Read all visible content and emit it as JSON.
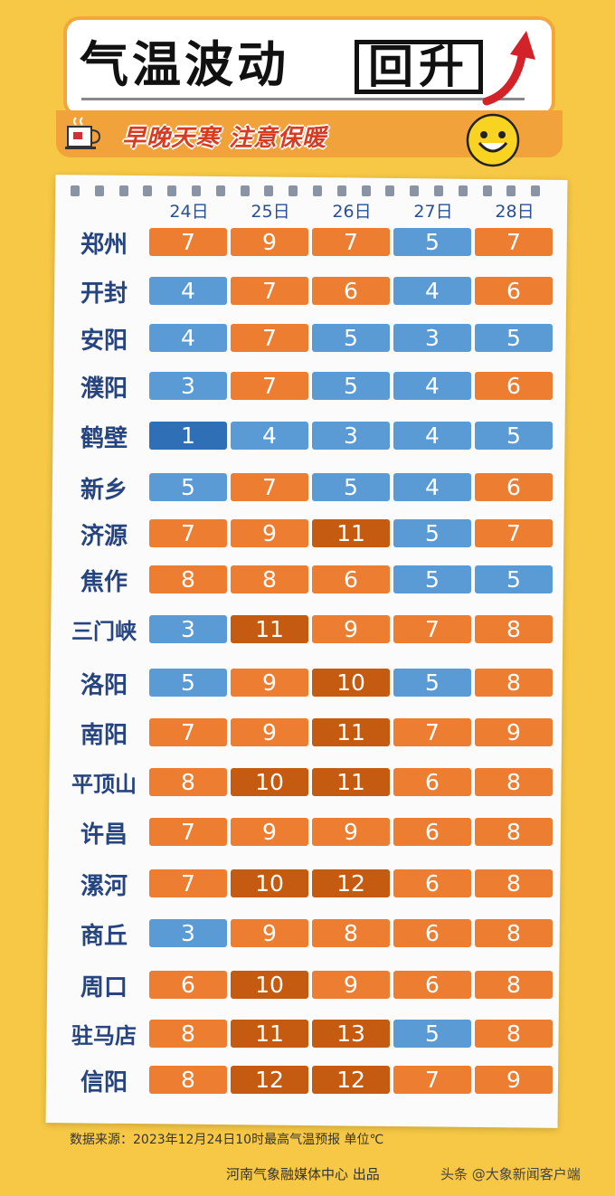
{
  "header": {
    "title_main": "气温波动",
    "title_box": "回升",
    "subtitle": "早晚天寒 注意保暖"
  },
  "colors": {
    "blue": "#5b9bd5",
    "deep_blue": "#2e6fb6",
    "orange": "#ec7d31",
    "dark_orange": "#c55a11"
  },
  "dates": [
    "24日",
    "25日",
    "26日",
    "27日",
    "28日"
  ],
  "cities": [
    {
      "name": "郑州",
      "temps": [
        {
          "v": "7",
          "c": "orange"
        },
        {
          "v": "9",
          "c": "orange"
        },
        {
          "v": "7",
          "c": "orange"
        },
        {
          "v": "5",
          "c": "blue"
        },
        {
          "v": "7",
          "c": "orange"
        }
      ]
    },
    {
      "name": "开封",
      "temps": [
        {
          "v": "4",
          "c": "blue"
        },
        {
          "v": "7",
          "c": "orange"
        },
        {
          "v": "6",
          "c": "orange"
        },
        {
          "v": "4",
          "c": "blue"
        },
        {
          "v": "6",
          "c": "orange"
        }
      ]
    },
    {
      "name": "安阳",
      "temps": [
        {
          "v": "4",
          "c": "blue"
        },
        {
          "v": "7",
          "c": "orange"
        },
        {
          "v": "5",
          "c": "blue"
        },
        {
          "v": "3",
          "c": "blue"
        },
        {
          "v": "5",
          "c": "blue"
        }
      ]
    },
    {
      "name": "濮阳",
      "temps": [
        {
          "v": "3",
          "c": "blue"
        },
        {
          "v": "7",
          "c": "orange"
        },
        {
          "v": "5",
          "c": "blue"
        },
        {
          "v": "4",
          "c": "blue"
        },
        {
          "v": "6",
          "c": "orange"
        }
      ]
    },
    {
      "name": "鹤壁",
      "temps": [
        {
          "v": "1",
          "c": "deep_blue"
        },
        {
          "v": "4",
          "c": "blue"
        },
        {
          "v": "3",
          "c": "blue"
        },
        {
          "v": "4",
          "c": "blue"
        },
        {
          "v": "5",
          "c": "blue"
        }
      ]
    },
    {
      "name": "新乡",
      "temps": [
        {
          "v": "5",
          "c": "blue"
        },
        {
          "v": "7",
          "c": "orange"
        },
        {
          "v": "5",
          "c": "blue"
        },
        {
          "v": "4",
          "c": "blue"
        },
        {
          "v": "6",
          "c": "orange"
        }
      ]
    },
    {
      "name": "济源",
      "temps": [
        {
          "v": "7",
          "c": "orange"
        },
        {
          "v": "9",
          "c": "orange"
        },
        {
          "v": "11",
          "c": "dark_orange"
        },
        {
          "v": "5",
          "c": "blue"
        },
        {
          "v": "7",
          "c": "orange"
        }
      ]
    },
    {
      "name": "焦作",
      "temps": [
        {
          "v": "8",
          "c": "orange"
        },
        {
          "v": "8",
          "c": "orange"
        },
        {
          "v": "6",
          "c": "orange"
        },
        {
          "v": "5",
          "c": "blue"
        },
        {
          "v": "5",
          "c": "blue"
        }
      ]
    },
    {
      "name": "三门峡",
      "temps": [
        {
          "v": "3",
          "c": "blue"
        },
        {
          "v": "11",
          "c": "dark_orange"
        },
        {
          "v": "9",
          "c": "orange"
        },
        {
          "v": "7",
          "c": "orange"
        },
        {
          "v": "8",
          "c": "orange"
        }
      ]
    },
    {
      "name": "洛阳",
      "temps": [
        {
          "v": "5",
          "c": "blue"
        },
        {
          "v": "9",
          "c": "orange"
        },
        {
          "v": "10",
          "c": "dark_orange"
        },
        {
          "v": "5",
          "c": "blue"
        },
        {
          "v": "8",
          "c": "orange"
        }
      ]
    },
    {
      "name": "南阳",
      "temps": [
        {
          "v": "7",
          "c": "orange"
        },
        {
          "v": "9",
          "c": "orange"
        },
        {
          "v": "11",
          "c": "dark_orange"
        },
        {
          "v": "7",
          "c": "orange"
        },
        {
          "v": "9",
          "c": "orange"
        }
      ]
    },
    {
      "name": "平顶山",
      "temps": [
        {
          "v": "8",
          "c": "orange"
        },
        {
          "v": "10",
          "c": "dark_orange"
        },
        {
          "v": "11",
          "c": "dark_orange"
        },
        {
          "v": "6",
          "c": "orange"
        },
        {
          "v": "8",
          "c": "orange"
        }
      ]
    },
    {
      "name": "许昌",
      "temps": [
        {
          "v": "7",
          "c": "orange"
        },
        {
          "v": "9",
          "c": "orange"
        },
        {
          "v": "9",
          "c": "orange"
        },
        {
          "v": "6",
          "c": "orange"
        },
        {
          "v": "8",
          "c": "orange"
        }
      ]
    },
    {
      "name": "漯河",
      "temps": [
        {
          "v": "7",
          "c": "orange"
        },
        {
          "v": "10",
          "c": "dark_orange"
        },
        {
          "v": "12",
          "c": "dark_orange"
        },
        {
          "v": "6",
          "c": "orange"
        },
        {
          "v": "8",
          "c": "orange"
        }
      ]
    },
    {
      "name": "商丘",
      "temps": [
        {
          "v": "3",
          "c": "blue"
        },
        {
          "v": "9",
          "c": "orange"
        },
        {
          "v": "8",
          "c": "orange"
        },
        {
          "v": "6",
          "c": "orange"
        },
        {
          "v": "8",
          "c": "orange"
        }
      ]
    },
    {
      "name": "周口",
      "temps": [
        {
          "v": "6",
          "c": "orange"
        },
        {
          "v": "10",
          "c": "dark_orange"
        },
        {
          "v": "9",
          "c": "orange"
        },
        {
          "v": "6",
          "c": "orange"
        },
        {
          "v": "8",
          "c": "orange"
        }
      ]
    },
    {
      "name": "驻马店",
      "temps": [
        {
          "v": "8",
          "c": "orange"
        },
        {
          "v": "11",
          "c": "dark_orange"
        },
        {
          "v": "13",
          "c": "dark_orange"
        },
        {
          "v": "5",
          "c": "blue"
        },
        {
          "v": "8",
          "c": "orange"
        }
      ]
    },
    {
      "name": "信阳",
      "temps": [
        {
          "v": "8",
          "c": "orange"
        },
        {
          "v": "12",
          "c": "dark_orange"
        },
        {
          "v": "12",
          "c": "dark_orange"
        },
        {
          "v": "7",
          "c": "orange"
        },
        {
          "v": "9",
          "c": "orange"
        }
      ]
    }
  ],
  "footer": {
    "note": "数据来源：2023年12月24日10时最高气温预报    单位℃",
    "credit": "河南气象融媒体中心  出品",
    "watermark": "头条 @大象新闻客户端"
  }
}
